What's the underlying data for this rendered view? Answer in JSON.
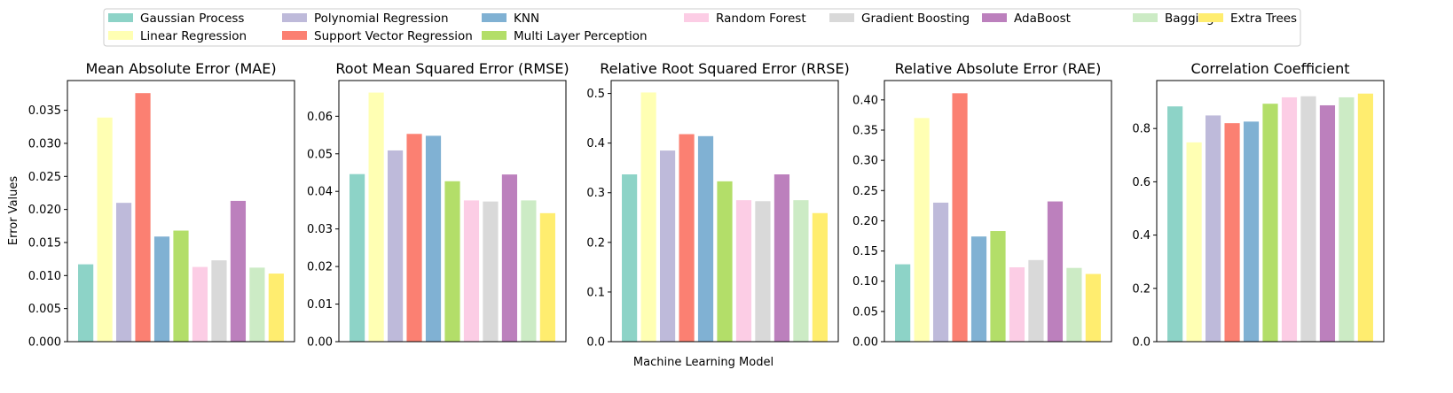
{
  "figure": {
    "xlabel": "Machine Learning Model",
    "ylabel": "Error Values"
  },
  "legend": {
    "placement": "top-center",
    "columns": 8
  },
  "chart_data": [
    {
      "type": "bar",
      "title": "Mean Absolute Error (MAE)",
      "xlabel": "",
      "ylabel": "Error Values",
      "ylim": [
        0,
        0.0395
      ],
      "yticks": [
        "0.000",
        "0.005",
        "0.010",
        "0.015",
        "0.020",
        "0.025",
        "0.030",
        "0.035"
      ],
      "ytick_values": [
        0,
        0.005,
        0.01,
        0.015,
        0.02,
        0.025,
        0.03,
        0.035
      ],
      "categories": [
        "Gaussian Process",
        "Linear Regression",
        "Polynomial Regression",
        "Support Vector Regression",
        "KNN",
        "Multi Layer Perception",
        "Random Forest",
        "Gradient Boosting",
        "AdaBoost",
        "Bagging",
        "Extra Trees"
      ],
      "values": [
        0.0117,
        0.0339,
        0.021,
        0.0376,
        0.0159,
        0.0168,
        0.0113,
        0.0123,
        0.0213,
        0.0112,
        0.0103
      ],
      "colors": [
        "#8dd3c7",
        "#ffffb3",
        "#bebada",
        "#fb8072",
        "#80b1d3",
        "#b3de69",
        "#fccde5",
        "#d9d9d9",
        "#bc80bd",
        "#ccebc5",
        "#ffed6f"
      ]
    },
    {
      "type": "bar",
      "title": "Root Mean Squared Error (RMSE)",
      "xlabel": "",
      "ylabel": "",
      "ylim": [
        0,
        0.0695
      ],
      "yticks": [
        "0.00",
        "0.01",
        "0.02",
        "0.03",
        "0.04",
        "0.05",
        "0.06"
      ],
      "ytick_values": [
        0,
        0.01,
        0.02,
        0.03,
        0.04,
        0.05,
        0.06
      ],
      "categories": [
        "Gaussian Process",
        "Linear Regression",
        "Polynomial Regression",
        "Support Vector Regression",
        "KNN",
        "Multi Layer Perception",
        "Random Forest",
        "Gradient Boosting",
        "AdaBoost",
        "Bagging",
        "Extra Trees"
      ],
      "values": [
        0.0446,
        0.0663,
        0.0509,
        0.0553,
        0.0548,
        0.0427,
        0.0376,
        0.0373,
        0.0445,
        0.0376,
        0.0342
      ],
      "colors": [
        "#8dd3c7",
        "#ffffb3",
        "#bebada",
        "#fb8072",
        "#80b1d3",
        "#b3de69",
        "#fccde5",
        "#d9d9d9",
        "#bc80bd",
        "#ccebc5",
        "#ffed6f"
      ]
    },
    {
      "type": "bar",
      "title": "Relative Root Squared Error (RRSE)",
      "xlabel": "",
      "ylabel": "",
      "ylim": [
        0,
        0.526
      ],
      "yticks": [
        "0.0",
        "0.1",
        "0.2",
        "0.3",
        "0.4",
        "0.5"
      ],
      "ytick_values": [
        0,
        0.1,
        0.2,
        0.3,
        0.4,
        0.5
      ],
      "categories": [
        "Gaussian Process",
        "Linear Regression",
        "Polynomial Regression",
        "Support Vector Regression",
        "KNN",
        "Multi Layer Perception",
        "Random Forest",
        "Gradient Boosting",
        "AdaBoost",
        "Bagging",
        "Extra Trees"
      ],
      "values": [
        0.337,
        0.502,
        0.385,
        0.418,
        0.414,
        0.323,
        0.285,
        0.283,
        0.337,
        0.285,
        0.259
      ],
      "colors": [
        "#8dd3c7",
        "#ffffb3",
        "#bebada",
        "#fb8072",
        "#80b1d3",
        "#b3de69",
        "#fccde5",
        "#d9d9d9",
        "#bc80bd",
        "#ccebc5",
        "#ffed6f"
      ]
    },
    {
      "type": "bar",
      "title": "Relative Absolute Error (RAE)",
      "xlabel": "",
      "ylabel": "",
      "ylim": [
        0,
        0.432
      ],
      "yticks": [
        "0.00",
        "0.05",
        "0.10",
        "0.15",
        "0.20",
        "0.25",
        "0.30",
        "0.35",
        "0.40"
      ],
      "ytick_values": [
        0,
        0.05,
        0.1,
        0.15,
        0.2,
        0.25,
        0.3,
        0.35,
        0.4
      ],
      "categories": [
        "Gaussian Process",
        "Linear Regression",
        "Polynomial Regression",
        "Support Vector Regression",
        "KNN",
        "Multi Layer Perception",
        "Random Forest",
        "Gradient Boosting",
        "AdaBoost",
        "Bagging",
        "Extra Trees"
      ],
      "values": [
        0.128,
        0.37,
        0.23,
        0.411,
        0.174,
        0.183,
        0.123,
        0.135,
        0.232,
        0.122,
        0.112
      ],
      "colors": [
        "#8dd3c7",
        "#ffffb3",
        "#bebada",
        "#fb8072",
        "#80b1d3",
        "#b3de69",
        "#fccde5",
        "#d9d9d9",
        "#bc80bd",
        "#ccebc5",
        "#ffed6f"
      ]
    },
    {
      "type": "bar",
      "title": "Correlation Coefficient",
      "xlabel": "",
      "ylabel": "",
      "ylim": [
        0,
        0.98
      ],
      "yticks": [
        "0.0",
        "0.2",
        "0.4",
        "0.6",
        "0.8"
      ],
      "ytick_values": [
        0,
        0.2,
        0.4,
        0.6,
        0.8
      ],
      "categories": [
        "Gaussian Process",
        "Linear Regression",
        "Polynomial Regression",
        "Support Vector Regression",
        "KNN",
        "Multi Layer Perception",
        "Random Forest",
        "Gradient Boosting",
        "AdaBoost",
        "Bagging",
        "Extra Trees"
      ],
      "values": [
        0.883,
        0.748,
        0.849,
        0.82,
        0.826,
        0.893,
        0.917,
        0.921,
        0.887,
        0.917,
        0.931
      ],
      "colors": [
        "#8dd3c7",
        "#ffffb3",
        "#bebada",
        "#fb8072",
        "#80b1d3",
        "#b3de69",
        "#fccde5",
        "#d9d9d9",
        "#bc80bd",
        "#ccebc5",
        "#ffed6f"
      ]
    }
  ],
  "series_legend": [
    {
      "name": "Gaussian Process",
      "color": "#8dd3c7"
    },
    {
      "name": "Linear Regression",
      "color": "#ffffb3"
    },
    {
      "name": "Polynomial Regression",
      "color": "#bebada"
    },
    {
      "name": "Support Vector Regression",
      "color": "#fb8072"
    },
    {
      "name": "KNN",
      "color": "#80b1d3"
    },
    {
      "name": "Multi Layer Perception",
      "color": "#b3de69"
    },
    {
      "name": "Random Forest",
      "color": "#fccde5"
    },
    {
      "name": "Gradient Boosting",
      "color": "#d9d9d9"
    },
    {
      "name": "AdaBoost",
      "color": "#bc80bd"
    },
    {
      "name": "Bagging",
      "color": "#ccebc5"
    },
    {
      "name": "Extra Trees",
      "color": "#ffed6f"
    }
  ]
}
